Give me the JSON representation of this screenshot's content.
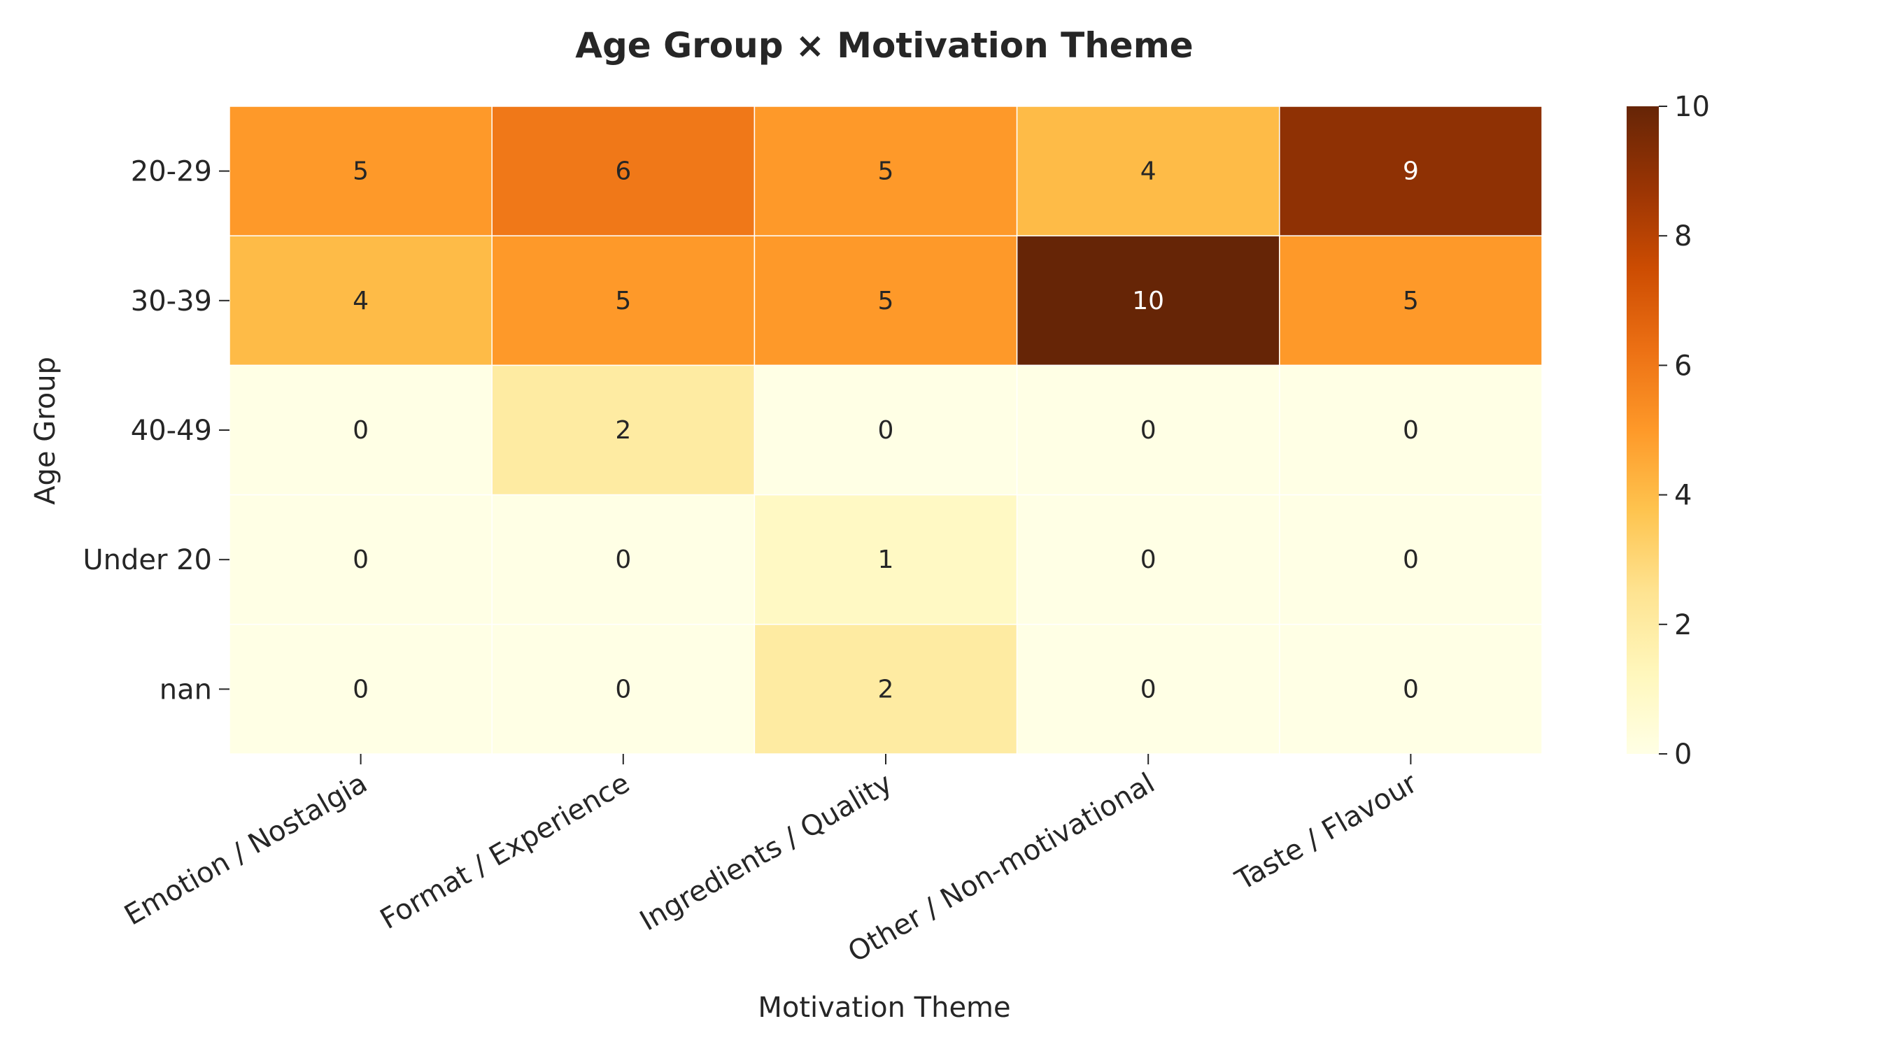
{
  "chart_data": {
    "type": "heatmap",
    "title": "Age Group × Motivation Theme",
    "xlabel": "Motivation Theme",
    "ylabel": "Age Group",
    "x_categories": [
      "Emotion / Nostalgia",
      "Format / Experience",
      "Ingredients / Quality",
      "Other / Non-motivational",
      "Taste / Flavour"
    ],
    "y_categories": [
      "20-29",
      "30-39",
      "40-49",
      "Under 20",
      "nan"
    ],
    "values": [
      [
        5,
        6,
        5,
        4,
        9
      ],
      [
        4,
        5,
        5,
        10,
        5
      ],
      [
        0,
        2,
        0,
        0,
        0
      ],
      [
        0,
        0,
        1,
        0,
        0
      ],
      [
        0,
        0,
        2,
        0,
        0
      ]
    ],
    "colorbar": {
      "range": [
        0,
        10
      ],
      "ticks": [
        "0",
        "2",
        "4",
        "6",
        "8",
        "10"
      ],
      "colormap": "YlOrBr",
      "position": "right"
    },
    "grid": false,
    "annotated": true
  }
}
